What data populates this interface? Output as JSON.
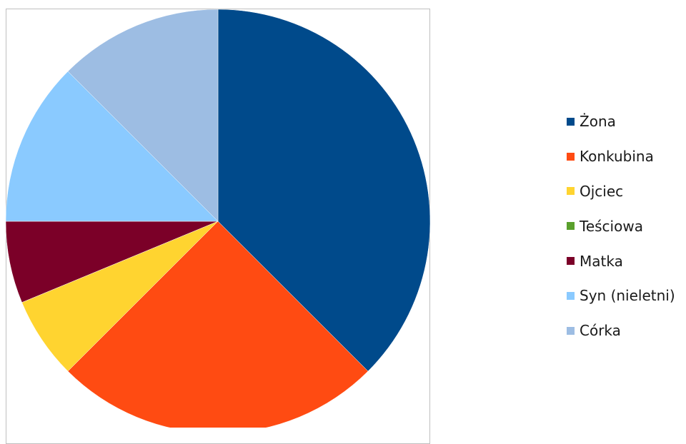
{
  "chart_data": {
    "type": "pie",
    "start_angle_deg": 90,
    "direction": "clockwise",
    "legend_position": "right",
    "series": [
      {
        "name": "Żona",
        "value": 37.5,
        "color": "#004a8b"
      },
      {
        "name": "Konkubina",
        "value": 25.0,
        "color": "#ff4b12"
      },
      {
        "name": "Ojciec",
        "value": 6.25,
        "color": "#ffd430"
      },
      {
        "name": "Teściowa",
        "value": 0,
        "color": "#5aa02c"
      },
      {
        "name": "Matka",
        "value": 6.25,
        "color": "#7b0028"
      },
      {
        "name": "Syn (nieletni)",
        "value": 12.5,
        "color": "#8acaff"
      },
      {
        "name": "Córka",
        "value": 12.5,
        "color": "#9dbde3"
      }
    ]
  }
}
